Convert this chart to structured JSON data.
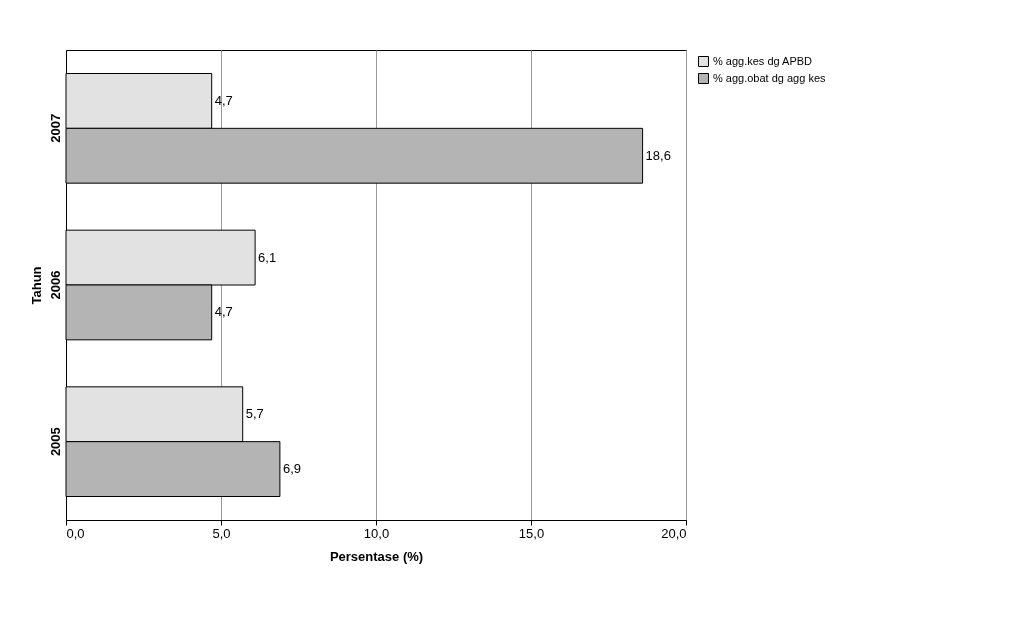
{
  "chart_data": {
    "type": "bar",
    "orientation": "horizontal",
    "xlabel": "Persentase (%)",
    "ylabel": "Tahun",
    "categories": [
      "2007",
      "2006",
      "2005"
    ],
    "series": [
      {
        "name": "% agg.kes dg APBD",
        "color": "#e2e2e2",
        "values": [
          4.7,
          6.1,
          5.7
        ],
        "value_labels": [
          "4,7",
          "6,1",
          "5,7"
        ]
      },
      {
        "name": "% agg.obat dg agg kes",
        "color": "#b4b4b4",
        "values": [
          18.6,
          4.7,
          6.9
        ],
        "value_labels": [
          "18,6",
          "4,7",
          "6,9"
        ]
      }
    ],
    "xlim": [
      0,
      20
    ],
    "xticks": [
      {
        "value": 0,
        "label": "0,0"
      },
      {
        "value": 5,
        "label": "5,0"
      },
      {
        "value": 10,
        "label": "10,0"
      },
      {
        "value": 15,
        "label": "15,0"
      },
      {
        "value": 20,
        "label": "20,0"
      }
    ],
    "grid": "x",
    "legend": "right"
  }
}
